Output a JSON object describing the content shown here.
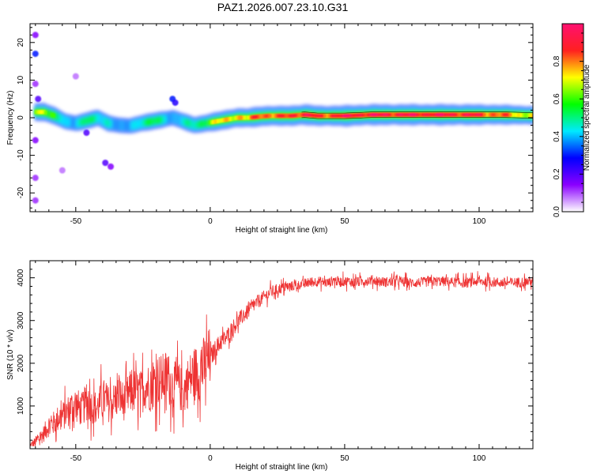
{
  "page": {
    "title": "PAZ1.2026.007.23.10.G31"
  },
  "colorbar": {
    "label": "Normalized spectral amplitude",
    "ticks": [
      {
        "value": 0.0,
        "label": "0.0"
      },
      {
        "value": 0.2,
        "label": "0.2"
      },
      {
        "value": 0.4,
        "label": "0.4"
      },
      {
        "value": 0.6,
        "label": "0.6"
      },
      {
        "value": 0.8,
        "label": "0.8"
      }
    ],
    "stops": [
      "#ffffff",
      "#8a00ff",
      "#0000ff",
      "#00eaff",
      "#00ff00",
      "#ffff00",
      "#ff2020",
      "#ff1070"
    ]
  },
  "chart_data": [
    {
      "type": "heatmap",
      "title": "",
      "xlabel": "Height of straight line (km)",
      "ylabel": "Frequency (Hz)",
      "xlim": [
        -67,
        120
      ],
      "ylim": [
        -25,
        25
      ],
      "x_ticks": [
        {
          "value": -50,
          "label": "-50"
        },
        {
          "value": 0,
          "label": "0"
        },
        {
          "value": 50,
          "label": "50"
        },
        {
          "value": 100,
          "label": "100"
        }
      ],
      "y_ticks": [
        {
          "value": -20,
          "label": "-20"
        },
        {
          "value": -10,
          "label": "-10"
        },
        {
          "value": 0,
          "label": "0"
        },
        {
          "value": 10,
          "label": "10"
        },
        {
          "value": 20,
          "label": "20"
        }
      ],
      "ridge": {
        "x": [
          -65,
          -62,
          -58,
          -54,
          -50,
          -46,
          -42,
          -38,
          -34,
          -30,
          -26,
          -22,
          -18,
          -14,
          -10,
          -6,
          -2,
          2,
          6,
          10,
          14,
          18,
          22,
          26,
          30,
          35,
          40,
          50,
          60,
          70,
          80,
          90,
          100,
          110,
          120
        ],
        "freq": [
          1.5,
          1.5,
          0.5,
          -1.0,
          -1.5,
          -0.8,
          0.0,
          -1.5,
          -2.0,
          -2.2,
          -1.5,
          -1.0,
          -0.5,
          0.0,
          -1.0,
          -2.0,
          -1.5,
          -1.0,
          -0.5,
          0.0,
          0.0,
          0.3,
          0.5,
          0.5,
          0.5,
          0.8,
          0.5,
          0.5,
          0.8,
          0.8,
          0.8,
          0.8,
          0.8,
          0.8,
          0.6
        ],
        "amplitude": [
          0.7,
          0.75,
          0.55,
          0.4,
          0.45,
          0.55,
          0.45,
          0.5,
          0.35,
          0.4,
          0.5,
          0.55,
          0.5,
          0.4,
          0.45,
          0.5,
          0.6,
          0.7,
          0.75,
          0.8,
          0.7,
          0.9,
          0.85,
          0.8,
          0.9,
          0.95,
          0.85,
          0.95,
          0.95,
          0.95,
          0.95,
          0.95,
          0.9,
          0.8,
          0.7
        ]
      },
      "scatter_blobs": [
        {
          "x": -65,
          "freq": 22,
          "amplitude": 0.15
        },
        {
          "x": -65,
          "freq": 17,
          "amplitude": 0.3
        },
        {
          "x": -65,
          "freq": 9,
          "amplitude": 0.12
        },
        {
          "x": -64,
          "freq": 5,
          "amplitude": 0.2
        },
        {
          "x": -65,
          "freq": -6,
          "amplitude": 0.15
        },
        {
          "x": -65,
          "freq": -16,
          "amplitude": 0.12
        },
        {
          "x": -65,
          "freq": -22,
          "amplitude": 0.12
        },
        {
          "x": -50,
          "freq": 11,
          "amplitude": 0.08
        },
        {
          "x": -39,
          "freq": -12,
          "amplitude": 0.2
        },
        {
          "x": -37,
          "freq": -13,
          "amplitude": 0.15
        },
        {
          "x": -14,
          "freq": 5,
          "amplitude": 0.3
        },
        {
          "x": -13,
          "freq": 4,
          "amplitude": 0.25
        },
        {
          "x": -46,
          "freq": -4,
          "amplitude": 0.2
        },
        {
          "x": -55,
          "freq": -14,
          "amplitude": 0.08
        }
      ]
    },
    {
      "type": "line",
      "title": "",
      "xlabel": "Height of straight line (km)",
      "ylabel": "SNR (10 * v/v)",
      "xlim": [
        -67,
        120
      ],
      "ylim": [
        0,
        4400
      ],
      "x_ticks": [
        {
          "value": -50,
          "label": "-50"
        },
        {
          "value": 0,
          "label": "0"
        },
        {
          "value": 50,
          "label": "50"
        },
        {
          "value": 100,
          "label": "100"
        }
      ],
      "y_ticks": [
        {
          "value": 1000,
          "label": "1000"
        },
        {
          "value": 2000,
          "label": "2000"
        },
        {
          "value": 3000,
          "label": "3000"
        },
        {
          "value": 4000,
          "label": "4000"
        }
      ],
      "series": [
        {
          "name": "SNR",
          "color": "#ee3333",
          "x": [
            -67,
            -65,
            -62,
            -60,
            -58,
            -56,
            -54,
            -52,
            -50,
            -48,
            -46,
            -44,
            -42,
            -40,
            -38,
            -36,
            -34,
            -32,
            -30,
            -28,
            -26,
            -24,
            -22,
            -20,
            -18,
            -16,
            -14,
            -12,
            -10,
            -8,
            -6,
            -4,
            -2,
            0,
            2,
            4,
            6,
            8,
            10,
            12,
            14,
            16,
            18,
            20,
            22,
            24,
            26,
            28,
            30,
            32,
            34,
            36,
            38,
            40,
            42,
            44,
            46,
            48,
            50,
            55,
            60,
            65,
            70,
            75,
            80,
            85,
            90,
            95,
            100,
            105,
            110,
            115,
            120
          ],
          "values": [
            50,
            150,
            350,
            550,
            600,
            750,
            800,
            950,
            1050,
            900,
            1100,
            1000,
            950,
            1200,
            1050,
            1100,
            1250,
            1100,
            1300,
            1350,
            1300,
            1500,
            1400,
            1650,
            1600,
            1700,
            1450,
            1500,
            1300,
            1600,
            1750,
            1800,
            1950,
            2100,
            2350,
            2500,
            2600,
            2800,
            2950,
            3100,
            3200,
            3350,
            3450,
            3550,
            3650,
            3700,
            3750,
            3780,
            3800,
            3820,
            3850,
            3880,
            3900,
            3920,
            3900,
            3880,
            3950,
            3900,
            3920,
            3900,
            3950,
            3900,
            3920,
            3880,
            3900,
            3920,
            3900,
            3880,
            3920,
            3900,
            3880,
            3900,
            3920
          ]
        }
      ]
    }
  ]
}
